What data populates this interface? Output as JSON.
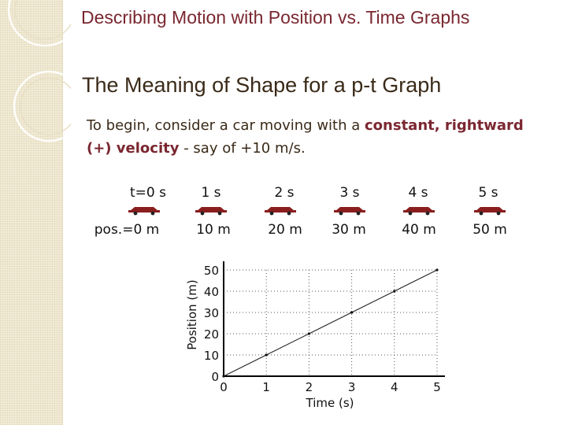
{
  "slide": {
    "title": "Describing Motion with Position vs. Time Graphs",
    "subtitle": "The Meaning of Shape for a p-t Graph",
    "intro": {
      "part1": "To begin, consider a car moving with a ",
      "emphasis": "constant, rightward (+) velocity",
      "part2": " - say of +10 m/s."
    }
  },
  "colors": {
    "title": "#7a2730",
    "text": "#3a2a18",
    "emphasis": "#7a2730",
    "strip": "#f2ecd8",
    "car": "#8a1e1e"
  },
  "car_sequence": [
    {
      "time": "t=0 s",
      "position": "pos.=0 m"
    },
    {
      "time": "1 s",
      "position": "10 m"
    },
    {
      "time": "2 s",
      "position": "20 m"
    },
    {
      "time": "3 s",
      "position": "30 m"
    },
    {
      "time": "4 s",
      "position": "40 m"
    },
    {
      "time": "5 s",
      "position": "50 m"
    }
  ],
  "chart_data": {
    "type": "line",
    "xlabel": "Time (s)",
    "ylabel": "Position (m)",
    "xlim": [
      0,
      5
    ],
    "ylim": [
      0,
      50
    ],
    "xticks": [
      0,
      1,
      2,
      3,
      4,
      5
    ],
    "yticks": [
      0,
      10,
      20,
      30,
      40,
      50
    ],
    "grid": "dotted",
    "series": [
      {
        "x": [
          0,
          1,
          2,
          3,
          4,
          5
        ],
        "y": [
          0,
          10,
          20,
          30,
          40,
          50
        ]
      }
    ]
  }
}
